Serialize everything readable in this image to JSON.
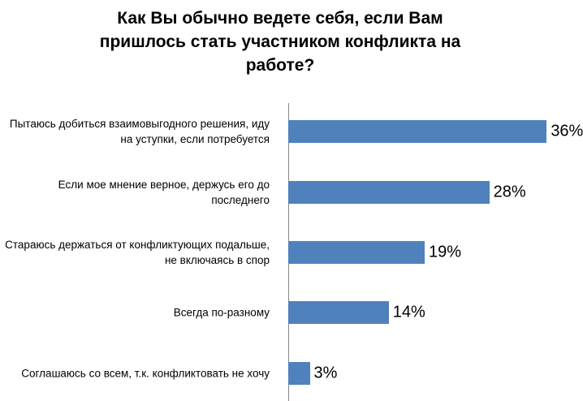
{
  "chart_data": {
    "type": "bar",
    "orientation": "horizontal",
    "title": "Как Вы обычно ведете себя, если Вам пришлось стать участником конфликта на работе?",
    "categories": [
      "Пытаюсь добиться взаимовыгодного решения, иду на уступки, если потребуется",
      "Если мое мнение верное, держусь его до последнего",
      "Стараюсь держаться от конфликтующих подальше, не включаясь в спор",
      "Всегда по-разному",
      "Соглашаюсь со всем, т.к. конфликтовать не хочу"
    ],
    "values": [
      36,
      28,
      19,
      14,
      3
    ],
    "value_labels": [
      "36%",
      "28%",
      "19%",
      "14%",
      "3%"
    ],
    "color": "#4f81bd",
    "xlim": [
      0,
      38
    ]
  }
}
